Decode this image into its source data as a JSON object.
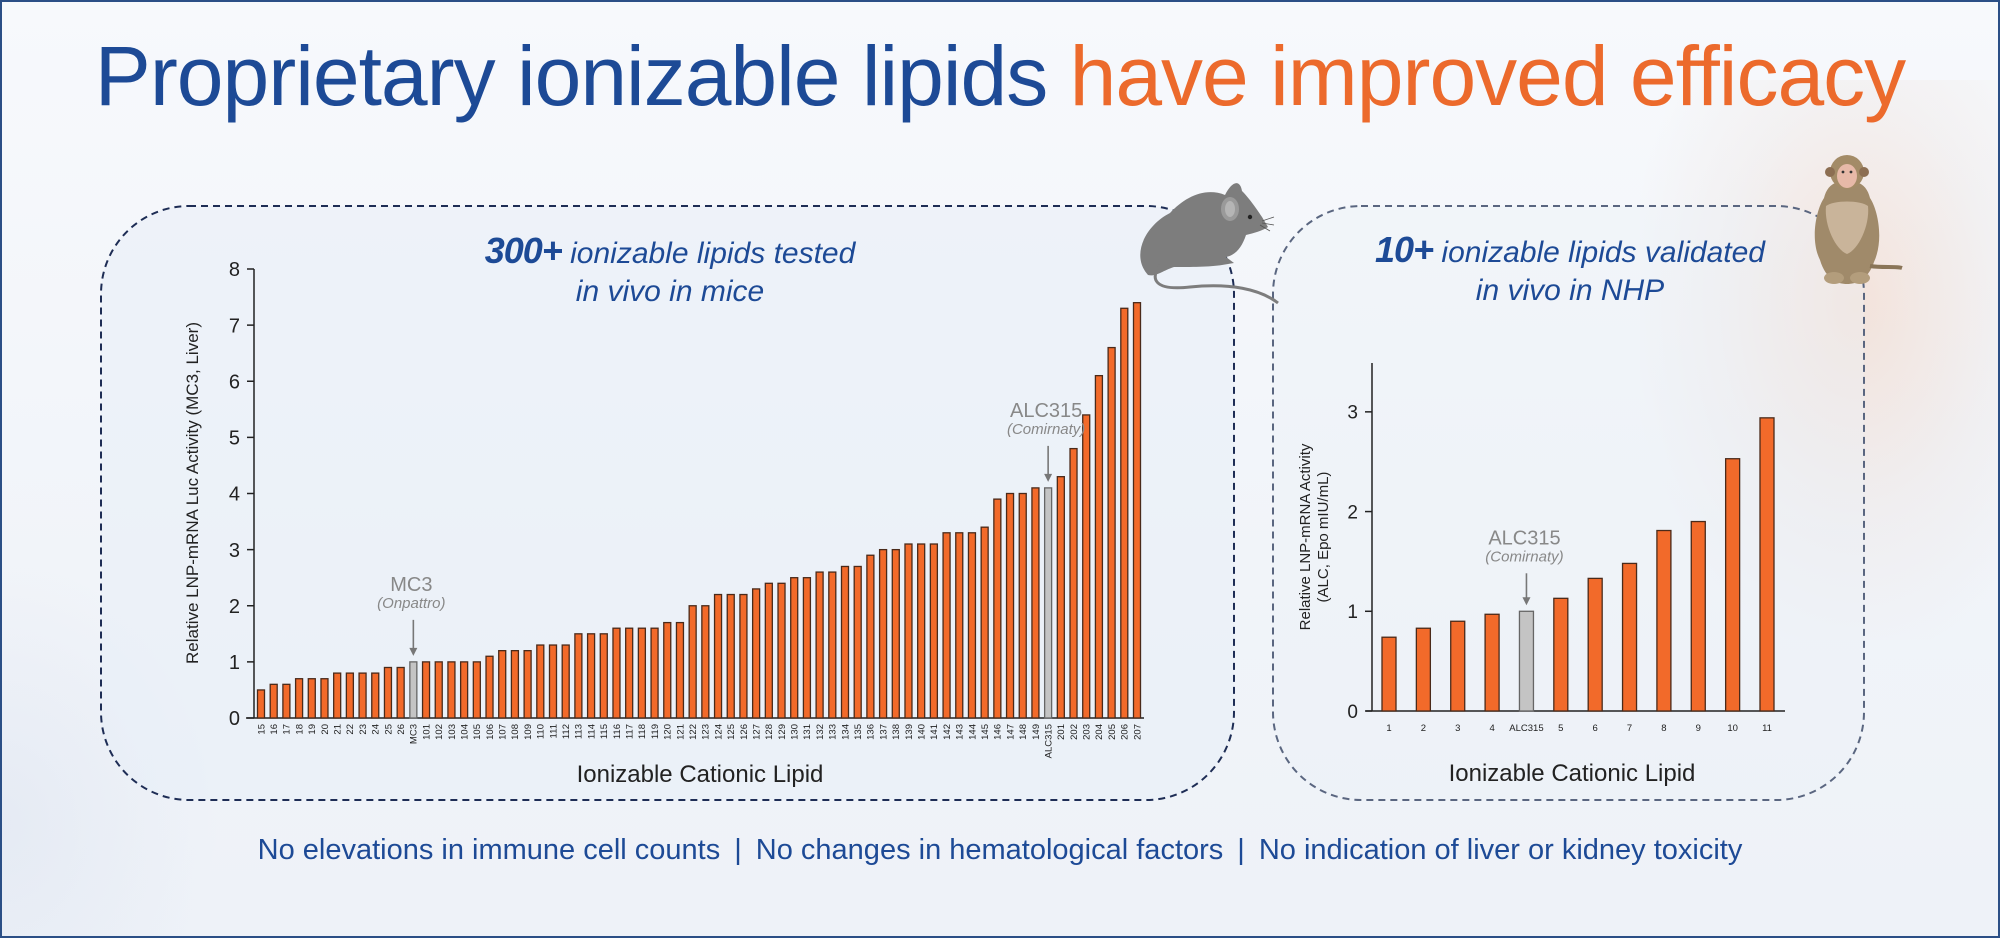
{
  "title": {
    "part1": "Proprietary ionizable lipids",
    "part2": "have improved efficacy"
  },
  "colors": {
    "title_blue": "#1d4a96",
    "title_orange": "#ec6a2c",
    "bar_orange": "#f26a2a",
    "bar_reference": "#c4c4c4",
    "bar_outline": "#4a2a1a"
  },
  "left_panel": {
    "headline_bold": "300+",
    "headline_rest": " ionizable lipids tested",
    "headline_line2": "in vivo in mice",
    "animal_icon": "mouse-icon"
  },
  "right_panel": {
    "headline_bold": "10+",
    "headline_rest": " ionizable lipids validated",
    "headline_line2": "in vivo in NHP",
    "animal_icon": "monkey-icon"
  },
  "footer": {
    "items": [
      "No elevations in immune cell counts",
      "No changes in hematological factors",
      "No indication of liver or kidney toxicity"
    ],
    "separator": "|"
  },
  "chart_data": [
    {
      "type": "bar",
      "title": "300+ ionizable lipids tested in vivo in mice",
      "xlabel": "Ionizable Cationic Lipid",
      "ylabel": "Relative LNP-mRNA Luc Activity (MC3, Liver)",
      "ylim": [
        0,
        8
      ],
      "yticks": [
        0,
        1,
        2,
        3,
        4,
        5,
        6,
        7,
        8
      ],
      "grid": false,
      "categories": [
        "15",
        "16",
        "17",
        "18",
        "19",
        "20",
        "21",
        "22",
        "23",
        "24",
        "25",
        "26",
        "MC3",
        "101",
        "102",
        "103",
        "104",
        "105",
        "106",
        "107",
        "108",
        "109",
        "110",
        "111",
        "112",
        "113",
        "114",
        "115",
        "116",
        "117",
        "118",
        "119",
        "120",
        "121",
        "122",
        "123",
        "124",
        "125",
        "126",
        "127",
        "128",
        "129",
        "130",
        "131",
        "132",
        "133",
        "134",
        "135",
        "136",
        "137",
        "138",
        "139",
        "140",
        "141",
        "142",
        "143",
        "144",
        "145",
        "146",
        "147",
        "148",
        "149",
        "ALC315",
        "201",
        "202",
        "203",
        "204",
        "205",
        "206",
        "207"
      ],
      "values": [
        0.5,
        0.6,
        0.6,
        0.7,
        0.7,
        0.7,
        0.8,
        0.8,
        0.8,
        0.8,
        0.9,
        0.9,
        1.0,
        1.0,
        1.0,
        1.0,
        1.0,
        1.0,
        1.1,
        1.2,
        1.2,
        1.2,
        1.3,
        1.3,
        1.3,
        1.5,
        1.5,
        1.5,
        1.6,
        1.6,
        1.6,
        1.6,
        1.7,
        1.7,
        2.0,
        2.0,
        2.2,
        2.2,
        2.2,
        2.3,
        2.4,
        2.4,
        2.5,
        2.5,
        2.6,
        2.6,
        2.7,
        2.7,
        2.9,
        3.0,
        3.0,
        3.1,
        3.1,
        3.1,
        3.3,
        3.3,
        3.3,
        3.4,
        3.9,
        4.0,
        4.0,
        4.1,
        4.1,
        4.3,
        4.8,
        5.4,
        6.1,
        6.6,
        7.3,
        7.4
      ],
      "reference_bars": [
        "MC3",
        "ALC315"
      ],
      "annotations": [
        {
          "target": "MC3",
          "label": "MC3",
          "sublabel": "(Onpattro)"
        },
        {
          "target": "ALC315",
          "label": "ALC315",
          "sublabel": "(Comirnaty)"
        }
      ]
    },
    {
      "type": "bar",
      "title": "10+ ionizable lipids validated in vivo in NHP",
      "xlabel": "Ionizable Cationic Lipid",
      "ylabel": "Relative LNP-mRNA Activity (ALC, Epo mIU/mL)",
      "ylabel_line1": "Relative LNP-mRNA Activity",
      "ylabel_line2": "(ALC, Epo mIU/mL)",
      "ylim": [
        0,
        3.5
      ],
      "yticks": [
        0,
        1,
        2,
        3
      ],
      "grid": false,
      "categories": [
        "1",
        "2",
        "3",
        "4",
        "ALC315",
        "5",
        "6",
        "7",
        "8",
        "9",
        "10",
        "11"
      ],
      "values": [
        0.74,
        0.83,
        0.9,
        0.97,
        1.0,
        1.13,
        1.33,
        1.48,
        1.81,
        1.9,
        2.53,
        2.94
      ],
      "reference_bars": [
        "ALC315"
      ],
      "annotations": [
        {
          "target": "ALC315",
          "label": "ALC315",
          "sublabel": "(Comirnaty)"
        }
      ]
    }
  ]
}
